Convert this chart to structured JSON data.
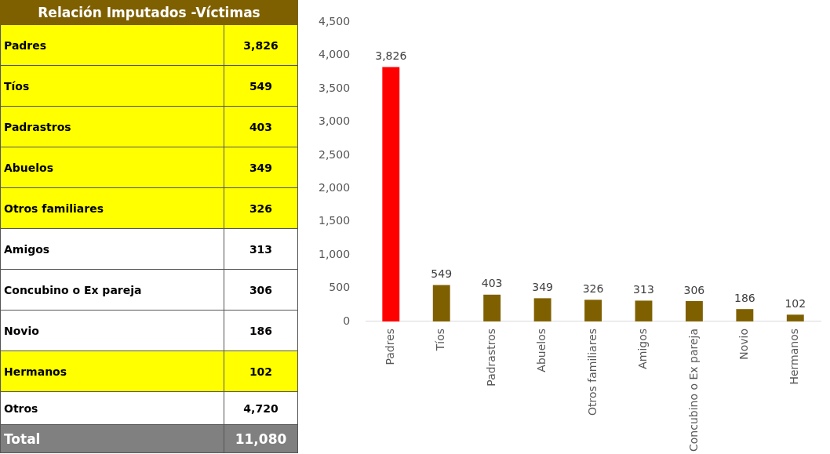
{
  "chart_data": [
    {
      "type": "other",
      "title": "Relación Imputados -Víctimas",
      "categories": [
        "Padres",
        "Tíos",
        "Padrastros",
        "Abuelos",
        "Otros familiares",
        "Amigos",
        "Concubino o Ex pareja",
        "Novio",
        "Hermanos",
        "Otros",
        "Total"
      ],
      "value_labels": [
        "3,826",
        "549",
        "403",
        "349",
        "326",
        "313",
        "306",
        "186",
        "102",
        "4,720",
        "11,080"
      ],
      "colors": [
        "#ffff00",
        "#ffff00",
        "#ffff00",
        "#ffff00",
        "#ffff00",
        "#ffffff",
        "#ffffff",
        "#ffffff",
        "#ffff00",
        "#ffffff",
        "#808080"
      ]
    },
    {
      "type": "bar",
      "categories": [
        "Padres",
        "Tíos",
        "Padrastros",
        "Abuelos",
        "Otros familiares",
        "Amigos",
        "Concubino o Ex pareja",
        "Novio",
        "Hermanos"
      ],
      "values": [
        3826,
        549,
        403,
        349,
        326,
        313,
        306,
        186,
        102
      ],
      "value_labels": [
        "3,826",
        "549",
        "403",
        "349",
        "326",
        "313",
        "306",
        "186",
        "102"
      ],
      "colors": [
        "#ff0000",
        "#7f6000",
        "#7f6000",
        "#7f6000",
        "#7f6000",
        "#7f6000",
        "#7f6000",
        "#7f6000",
        "#7f6000"
      ],
      "ylim": [
        0,
        4500
      ],
      "yticks": [
        0,
        500,
        {
          "value": 1000,
          "label": "1,000"
        },
        {
          "value": 1500,
          "label": "1,500"
        },
        {
          "value": 2000,
          "label": "2,000"
        },
        {
          "value": 2500,
          "label": "2,500"
        },
        {
          "value": 3000,
          "label": "3,000"
        },
        {
          "value": 3500,
          "label": "3,500"
        },
        {
          "value": 4000,
          "label": "4,000"
        },
        {
          "value": 4500,
          "label": "4,500"
        }
      ],
      "grid": false,
      "legend": false
    }
  ]
}
